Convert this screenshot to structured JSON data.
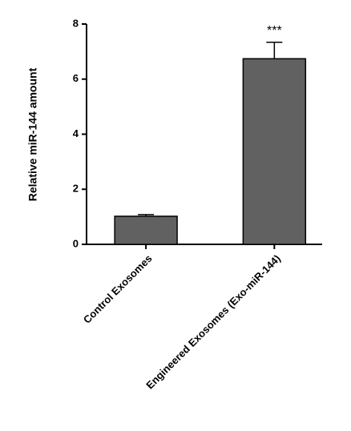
{
  "chart_data": {
    "type": "bar",
    "y_label": "Relative miR-144 amount",
    "categories": [
      "Control Exosomes",
      "Engineered Exosomes (Exo-miR-144)"
    ],
    "values": [
      1.02,
      6.74
    ],
    "errors": [
      0.06,
      0.6
    ],
    "significance": [
      null,
      "***"
    ],
    "color": "#616161",
    "ylim": [
      0,
      8
    ],
    "yticks": [
      0,
      2,
      4,
      6,
      8
    ],
    "grid": false
  }
}
